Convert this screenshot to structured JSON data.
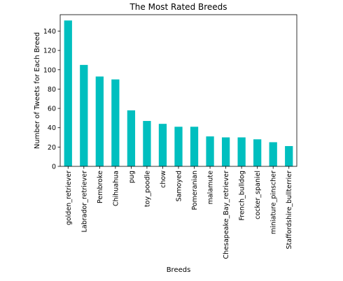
{
  "chart_data": {
    "type": "bar",
    "title": "The Most Rated Breeds",
    "xlabel": "Breeds",
    "ylabel": "Number of Tweets for Each Breed",
    "categories": [
      "golden_retriever",
      "Labrador_retriever",
      "Pembroke",
      "Chihuahua",
      "pug",
      "toy_poodle",
      "chow",
      "Samoyed",
      "Pomeranian",
      "malamute",
      "Chesapeake_Bay_retriever",
      "French_bulldog",
      "cocker_spaniel",
      "miniature_pinscher",
      "Staffordshire_bullterrier"
    ],
    "values": [
      151,
      105,
      93,
      90,
      58,
      47,
      44,
      41,
      41,
      31,
      30,
      30,
      28,
      25,
      21
    ],
    "ylim": [
      0,
      157
    ],
    "yticks": [
      0,
      20,
      40,
      60,
      80,
      100,
      120,
      140
    ],
    "grid": false,
    "bar_color": "#00bfbf"
  }
}
